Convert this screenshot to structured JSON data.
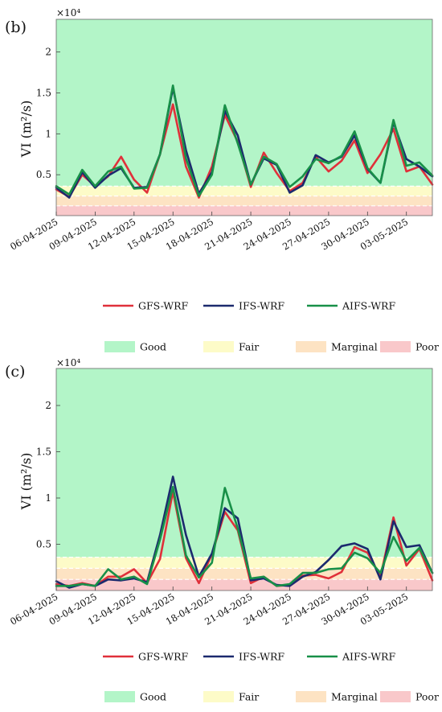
{
  "chart_data": [
    {
      "type": "line",
      "panel_label": "(b)",
      "ylabel": "VI (m²/s)",
      "exponent_label": "×10⁴",
      "ylim": [
        0,
        24000
      ],
      "yticks": [
        0.5,
        1,
        1.5,
        2
      ],
      "x": [
        "06-04-2025",
        "07-04-2025",
        "08-04-2025",
        "09-04-2025",
        "10-04-2025",
        "11-04-2025",
        "12-04-2025",
        "13-04-2025",
        "14-04-2025",
        "15-04-2025",
        "16-04-2025",
        "17-04-2025",
        "18-04-2025",
        "19-04-2025",
        "20-04-2025",
        "21-04-2025",
        "22-04-2025",
        "23-04-2025",
        "24-04-2025",
        "25-04-2025",
        "26-04-2025",
        "27-04-2025",
        "28-04-2025",
        "29-04-2025",
        "30-04-2025",
        "01-05-2025",
        "02-05-2025",
        "03-05-2025",
        "04-05-2025",
        "05-05-2025"
      ],
      "tick_labels": [
        "06-04-2025",
        "09-04-2025",
        "12-04-2025",
        "15-04-2025",
        "18-04-2025",
        "21-04-2025",
        "24-04-2025",
        "27-04-2025",
        "30-04-2025",
        "03-05-2025"
      ],
      "bands": [
        {
          "name": "Good",
          "from": 3600,
          "to": 24000,
          "color": "#b3f5c8"
        },
        {
          "name": "Fair",
          "from": 2400,
          "to": 3600,
          "color": "#fdfbc8"
        },
        {
          "name": "Marginal",
          "from": 1200,
          "to": 2400,
          "color": "#fde3c3"
        },
        {
          "name": "Poor",
          "from": 0,
          "to": 1200,
          "color": "#f9c8ca"
        }
      ],
      "series": [
        {
          "name": "GFS-WRF",
          "color": "#e0303a",
          "values": [
            3200,
            2300,
            5000,
            3600,
            4800,
            7200,
            4400,
            2800,
            7500,
            13600,
            6000,
            2200,
            6000,
            12300,
            9000,
            3500,
            7700,
            5200,
            3000,
            4000,
            7200,
            5400,
            6700,
            9200,
            5200,
            7500,
            10600,
            5400,
            6000,
            3800
          ]
        },
        {
          "name": "IFS-WRF",
          "color": "#1c2a6e",
          "values": [
            3400,
            2200,
            5300,
            3400,
            4900,
            5800,
            3400,
            3500,
            7500,
            15600,
            8000,
            2700,
            5300,
            12800,
            9800,
            3800,
            7000,
            6200,
            2800,
            3700,
            7400,
            6500,
            7200,
            9800,
            5700,
            4000,
            11400,
            6900,
            6000,
            4800
          ]
        },
        {
          "name": "AIFS-WRF",
          "color": "#189048",
          "values": [
            3600,
            2600,
            5600,
            3600,
            5400,
            6000,
            3300,
            3400,
            7500,
            15900,
            7000,
            2400,
            5000,
            13500,
            8800,
            3800,
            7200,
            6300,
            3500,
            4800,
            6900,
            6400,
            7300,
            10300,
            5800,
            4000,
            11700,
            6100,
            6500,
            4900
          ]
        }
      ]
    },
    {
      "type": "line",
      "panel_label": "(c)",
      "ylabel": "VI (m²/s)",
      "exponent_label": "×10⁴",
      "ylim": [
        0,
        24000
      ],
      "yticks": [
        0.5,
        1,
        1.5,
        2
      ],
      "x": [
        "06-04-2025",
        "07-04-2025",
        "08-04-2025",
        "09-04-2025",
        "10-04-2025",
        "11-04-2025",
        "12-04-2025",
        "13-04-2025",
        "14-04-2025",
        "15-04-2025",
        "16-04-2025",
        "17-04-2025",
        "18-04-2025",
        "19-04-2025",
        "20-04-2025",
        "21-04-2025",
        "22-04-2025",
        "23-04-2025",
        "24-04-2025",
        "25-04-2025",
        "26-04-2025",
        "27-04-2025",
        "28-04-2025",
        "29-04-2025",
        "30-04-2025",
        "01-05-2025",
        "02-05-2025",
        "03-05-2025",
        "04-05-2025",
        "05-05-2025"
      ],
      "tick_labels": [
        "06-04-2025",
        "09-04-2025",
        "12-04-2025",
        "15-04-2025",
        "18-04-2025",
        "21-04-2025",
        "24-04-2025",
        "27-04-2025",
        "30-04-2025",
        "03-05-2025"
      ],
      "bands": [
        {
          "name": "Good",
          "from": 3600,
          "to": 24000,
          "color": "#b3f5c8"
        },
        {
          "name": "Fair",
          "from": 2400,
          "to": 3600,
          "color": "#fdfbc8"
        },
        {
          "name": "Marginal",
          "from": 1200,
          "to": 2400,
          "color": "#fde3c3"
        },
        {
          "name": "Poor",
          "from": 0,
          "to": 1200,
          "color": "#f9c8ca"
        }
      ],
      "series": [
        {
          "name": "GFS-WRF",
          "color": "#e0303a",
          "values": [
            700,
            500,
            800,
            500,
            1500,
            1500,
            2300,
            800,
            3400,
            10700,
            3500,
            800,
            3900,
            8500,
            6500,
            800,
            1500,
            500,
            600,
            1600,
            1700,
            1300,
            2000,
            4700,
            4100,
            1500,
            7900,
            2700,
            4500,
            1100
          ]
        },
        {
          "name": "IFS-WRF",
          "color": "#1c2a6e",
          "values": [
            1000,
            300,
            700,
            500,
            1200,
            1100,
            1300,
            900,
            6000,
            12300,
            6000,
            1500,
            4000,
            8900,
            7800,
            1100,
            1300,
            600,
            500,
            1500,
            2000,
            3300,
            4800,
            5100,
            4500,
            1200,
            7500,
            4700,
            4900,
            1900
          ]
        },
        {
          "name": "AIFS-WRF",
          "color": "#189048",
          "values": [
            500,
            500,
            700,
            500,
            2300,
            1200,
            1500,
            700,
            5500,
            11200,
            3800,
            1400,
            3000,
            11100,
            6700,
            1300,
            1500,
            500,
            700,
            1900,
            1900,
            2300,
            2400,
            4100,
            3500,
            1900,
            5800,
            3200,
            4600,
            1900
          ]
        }
      ]
    }
  ],
  "legend": {
    "series_labels": [
      "GFS-WRF",
      "IFS-WRF",
      "AIFS-WRF"
    ],
    "band_labels": [
      "Good",
      "Fair",
      "Marginal",
      "Poor"
    ]
  }
}
